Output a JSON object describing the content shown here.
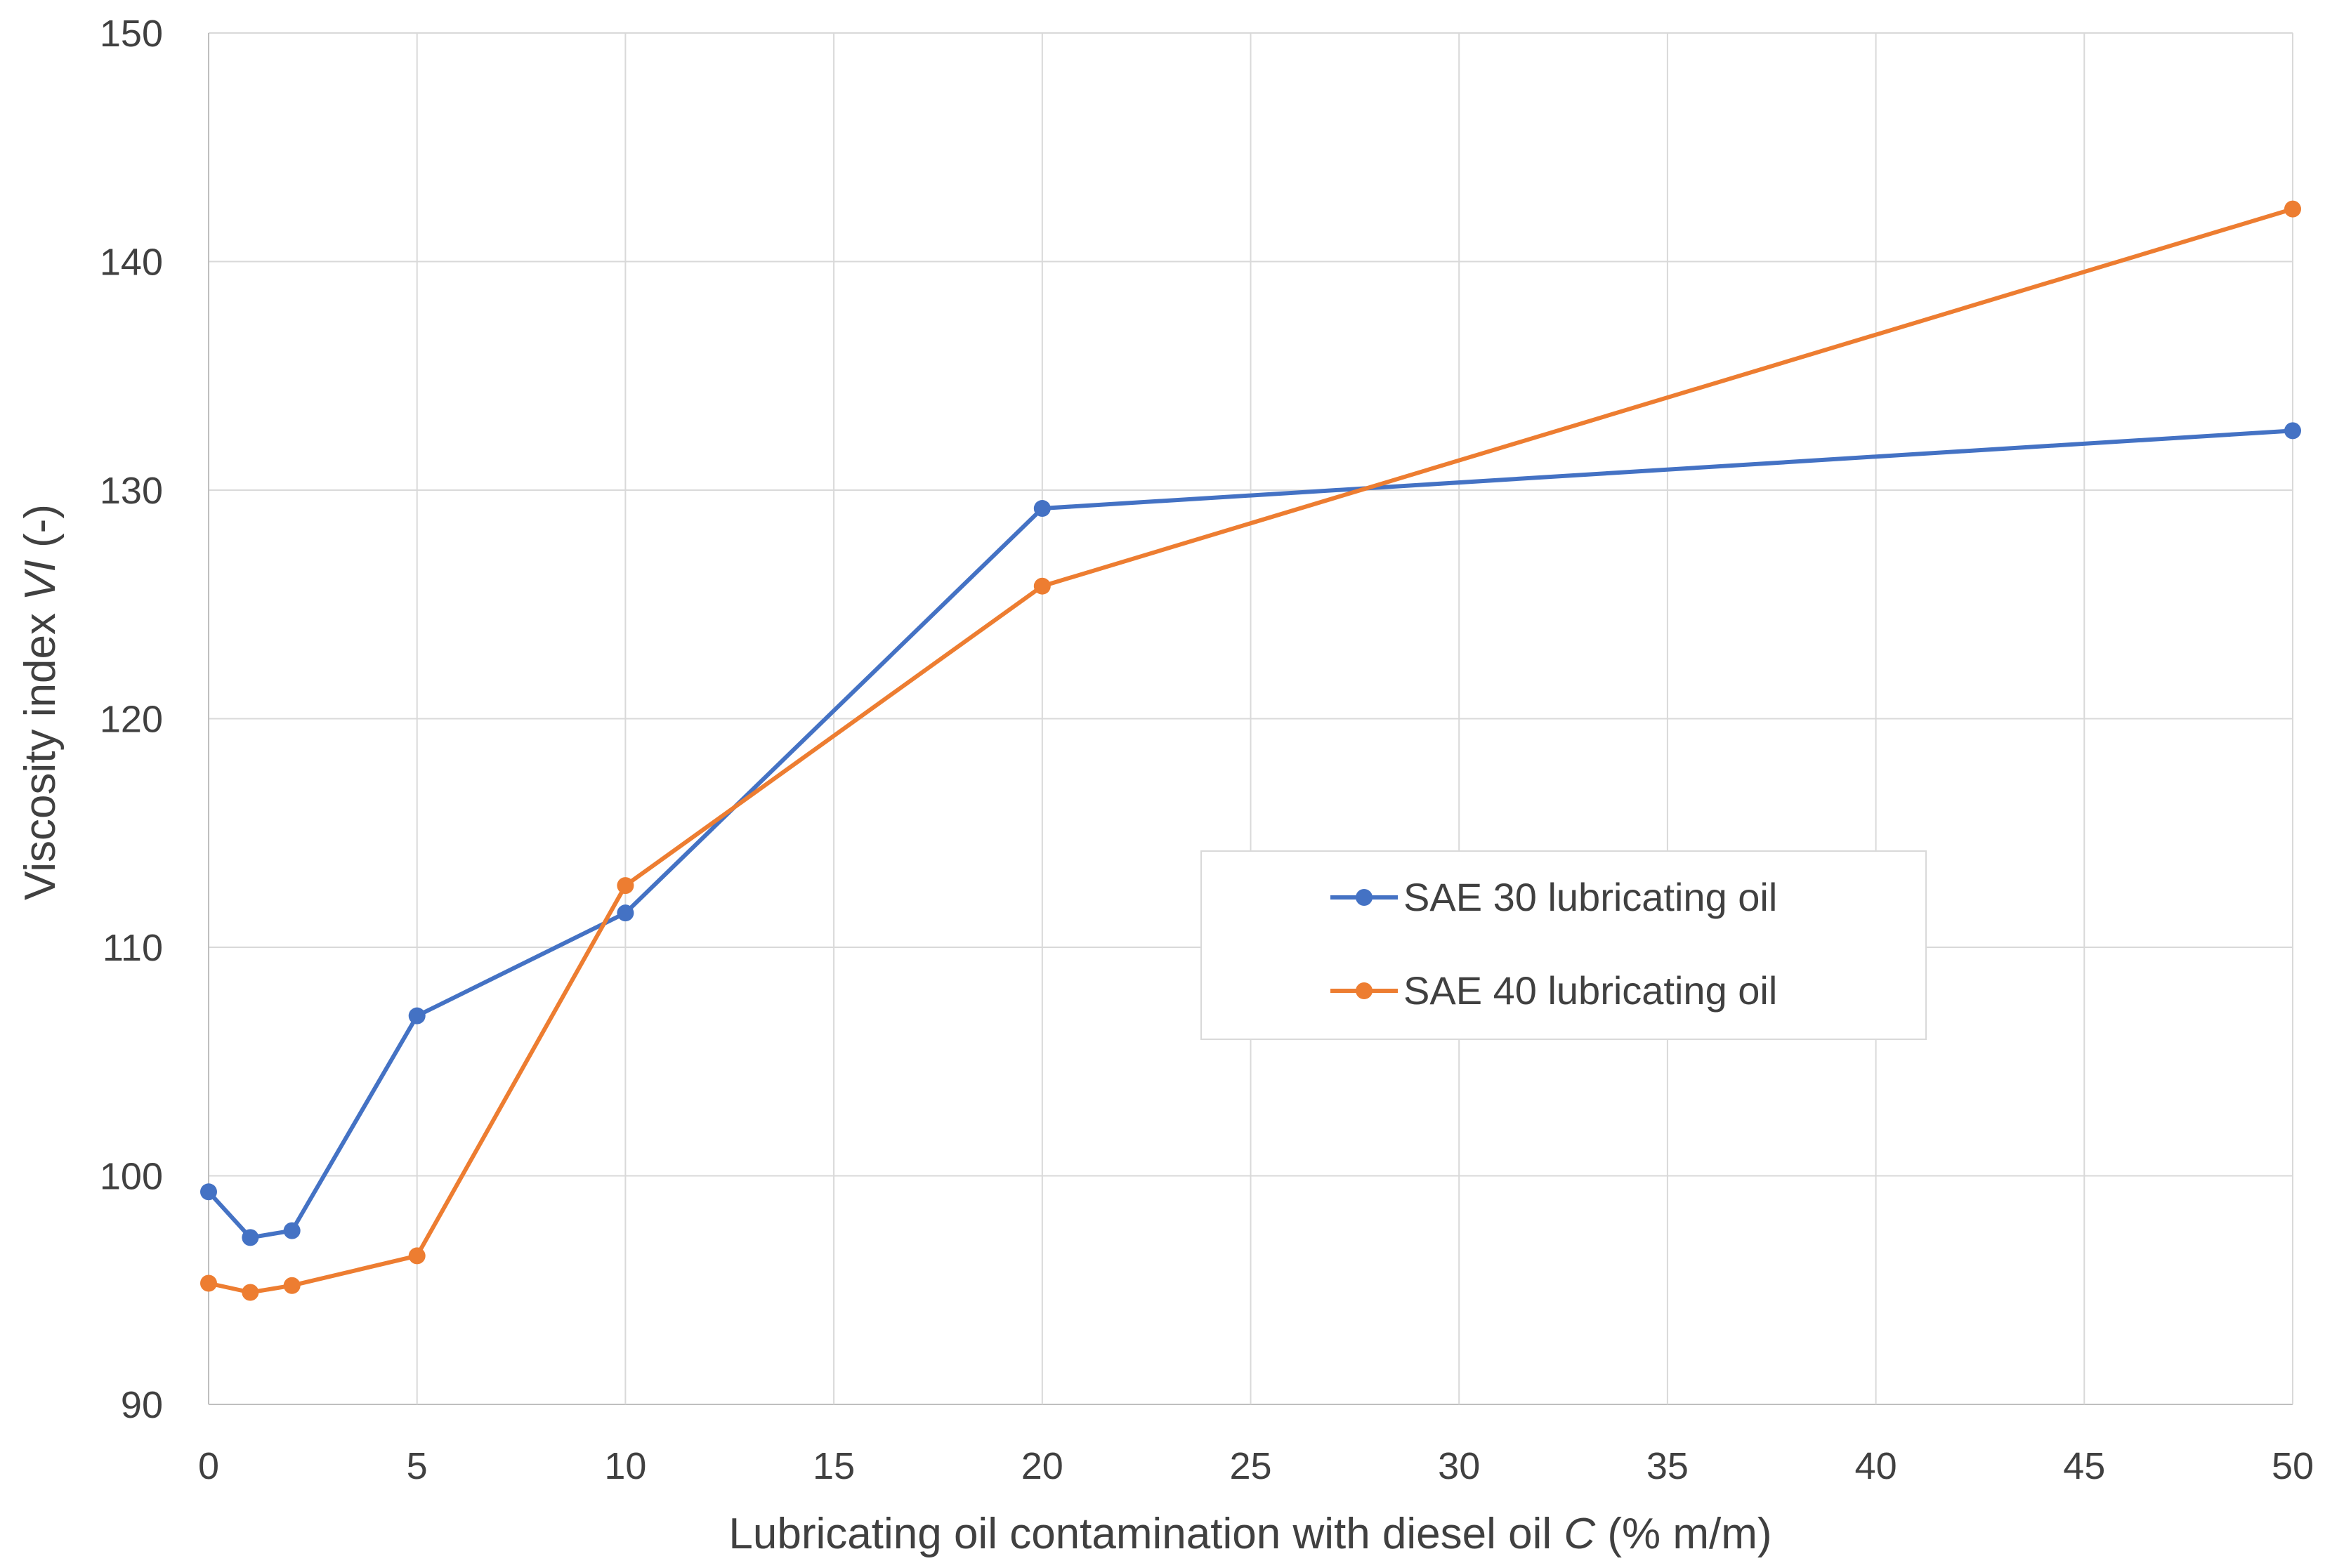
{
  "chart_data": {
    "type": "line",
    "title": "",
    "xlabel": {
      "prefix": "Lubricating oil contamination with diesel oil ",
      "variable": "C",
      "suffix": " (% m/m)"
    },
    "ylabel": {
      "prefix": "Viscosity index ",
      "variable": "VI",
      "suffix": " (-)"
    },
    "xlim": [
      0,
      50
    ],
    "ylim": [
      90,
      150
    ],
    "xticks": [
      0,
      5,
      10,
      15,
      20,
      25,
      30,
      35,
      40,
      45,
      50
    ],
    "yticks": [
      90,
      100,
      110,
      120,
      130,
      140,
      150
    ],
    "grid": true,
    "legend_position": "center-right",
    "series": [
      {
        "name": "SAE 30 lubricating oil",
        "color": "#4472C4",
        "x": [
          0,
          1,
          2,
          5,
          10,
          20,
          50
        ],
        "y": [
          99.3,
          97.3,
          97.6,
          107.0,
          111.5,
          129.2,
          132.6
        ]
      },
      {
        "name": "SAE 40 lubricating oil",
        "color": "#ED7D31",
        "x": [
          0,
          1,
          2,
          5,
          10,
          20,
          50
        ],
        "y": [
          95.3,
          94.9,
          95.2,
          96.5,
          112.7,
          125.8,
          142.3
        ]
      }
    ]
  }
}
